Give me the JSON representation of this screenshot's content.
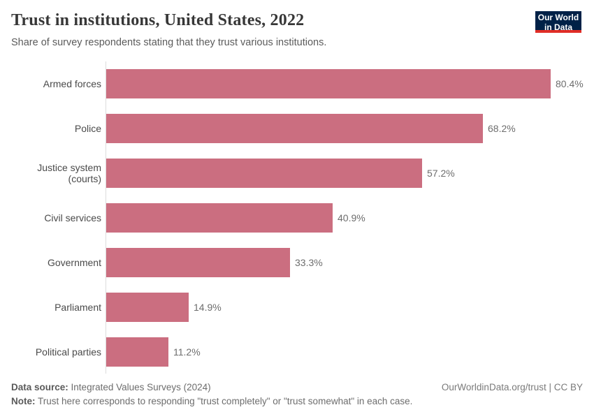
{
  "header": {
    "title": "Trust in institutions, United States, 2022",
    "subtitle": "Share of survey respondents stating that they trust various institutions.",
    "logo": {
      "line1": "Our World",
      "line2": "in Data"
    }
  },
  "chart_data": {
    "type": "bar",
    "orientation": "horizontal",
    "title": "Trust in institutions, United States, 2022",
    "xlabel": "",
    "ylabel": "",
    "xlim": [
      0,
      80.4
    ],
    "grid": false,
    "legend": false,
    "categories": [
      "Armed forces",
      "Police",
      "Justice system (courts)",
      "Civil services",
      "Government",
      "Parliament",
      "Political parties"
    ],
    "values": [
      80.4,
      68.2,
      57.2,
      40.9,
      33.3,
      14.9,
      11.2
    ],
    "value_labels": [
      "80.4%",
      "68.2%",
      "57.2%",
      "40.9%",
      "33.3%",
      "14.9%",
      "11.2%"
    ],
    "bar_color": "#cb6e80"
  },
  "footer": {
    "data_source_label": "Data source:",
    "data_source_text": "Integrated Values Surveys (2024)",
    "note_label": "Note:",
    "note_text": "Trust here corresponds to responding \"trust completely\" or \"trust somewhat\" in each case.",
    "link": "OurWorldinData.org/trust | CC BY"
  },
  "colors": {
    "bar": "#cb6e80",
    "axis": "#dcdcdc",
    "logo_bg": "#002147",
    "logo_accent": "#e02d26",
    "title": "#373737",
    "subtitle": "#5b5b5b"
  }
}
